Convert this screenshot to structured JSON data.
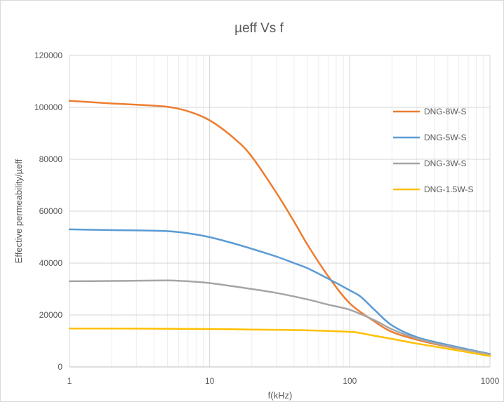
{
  "chart_data": {
    "type": "line",
    "title": "µeff Vs f",
    "xlabel": "f(kHz)",
    "ylabel": "Effective permeability/µeff",
    "xscale": "log",
    "xlim": [
      1,
      1000
    ],
    "ylim": [
      0,
      120000
    ],
    "xticks": [
      1,
      10,
      100,
      1000
    ],
    "xtick_labels": [
      "1",
      "10",
      "100",
      "1000"
    ],
    "yticks": [
      0,
      20000,
      40000,
      60000,
      80000,
      100000,
      120000
    ],
    "ytick_labels": [
      "0",
      "20000",
      "40000",
      "60000",
      "80000",
      "100000",
      "120000"
    ],
    "grid": true,
    "legend_position": "right",
    "series": [
      {
        "name": "DNG-8W-S",
        "color": "#ED7D31",
        "x": [
          1,
          2,
          3,
          5,
          7,
          10,
          15,
          20,
          30,
          40,
          50,
          70,
          100,
          150,
          200,
          300,
          500,
          1000
        ],
        "values": [
          102500,
          101500,
          101000,
          100200,
          98500,
          95000,
          88000,
          81000,
          67000,
          56000,
          47000,
          35000,
          24500,
          17500,
          13500,
          10500,
          7800,
          5000
        ]
      },
      {
        "name": "DNG-5W-S",
        "color": "#5B9BD5",
        "x": [
          1,
          2,
          3,
          5,
          7,
          10,
          15,
          20,
          30,
          40,
          50,
          70,
          100,
          120,
          150,
          200,
          300,
          500,
          1000
        ],
        "values": [
          53000,
          52700,
          52600,
          52300,
          51500,
          50000,
          47500,
          45500,
          42500,
          40000,
          38000,
          34000,
          29500,
          27000,
          22000,
          16000,
          11500,
          8500,
          5000
        ]
      },
      {
        "name": "DNG-3W-S",
        "color": "#A5A5A5",
        "x": [
          1,
          2,
          3,
          5,
          7,
          10,
          15,
          20,
          30,
          50,
          70,
          100,
          150,
          200,
          300,
          500,
          1000
        ],
        "values": [
          33000,
          33100,
          33200,
          33300,
          33000,
          32300,
          31000,
          30000,
          28500,
          26000,
          24000,
          22000,
          18000,
          14500,
          11000,
          8000,
          4800
        ]
      },
      {
        "name": "DNG-1.5W-S",
        "color": "#FFC000",
        "x": [
          1,
          2,
          5,
          10,
          20,
          50,
          100,
          120,
          150,
          200,
          300,
          500,
          1000
        ],
        "values": [
          14800,
          14800,
          14700,
          14600,
          14400,
          14100,
          13500,
          13000,
          12000,
          10800,
          9000,
          7000,
          4200
        ]
      }
    ]
  }
}
